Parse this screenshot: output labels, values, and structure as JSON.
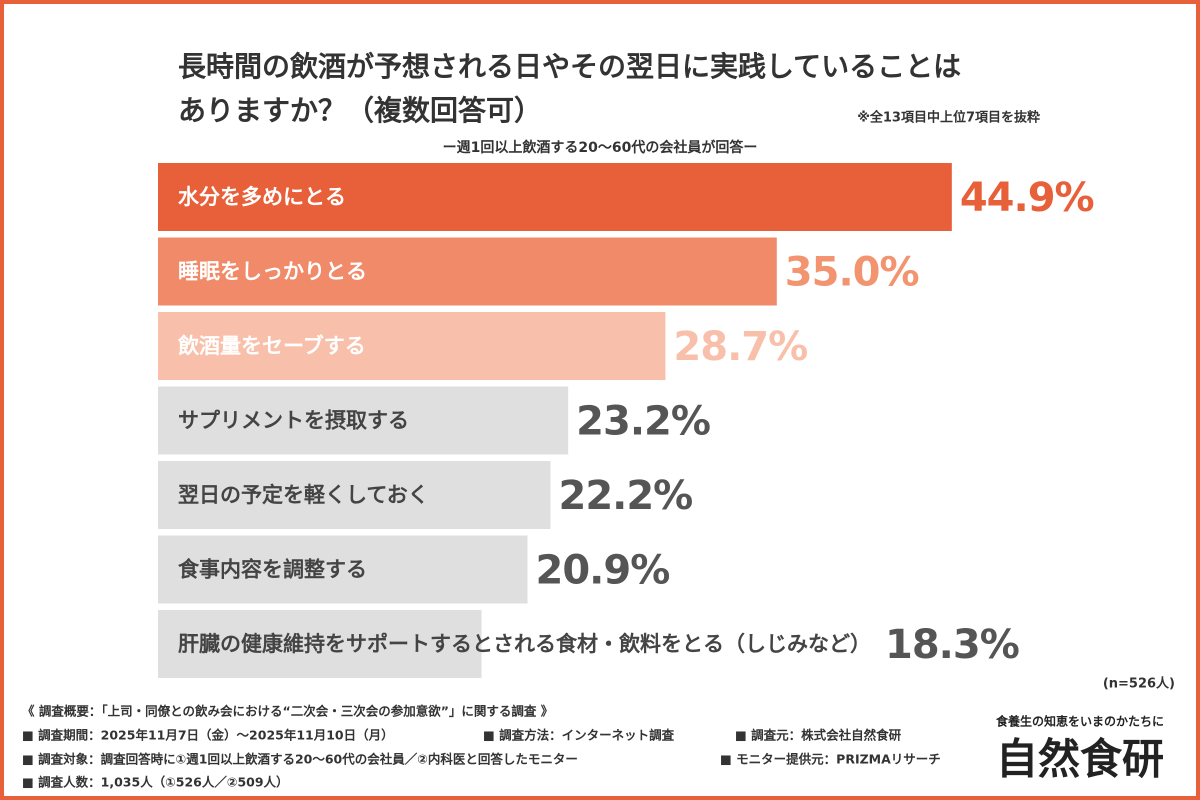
{
  "chart_data": {
    "type": "bar",
    "orientation": "horizontal",
    "title": [
      "長時間の飲酒が予想される日やその翌日に実践していることは",
      "ありますか？（複数回答可）"
    ],
    "note": "※全13項目中上位7項目を抜粋",
    "subtitle": "ー週1回以上飲酒する20〜60代の会社員が回答ー",
    "categories": [
      "水分を多めにとる",
      "睡眠をしっかりとる",
      "飲酒量をセーブする",
      "サプリメントを摂取する",
      "翌日の予定を軽くしておく",
      "食事内容を調整する",
      "肝臓の健康維持をサポートするとされる食材・飲料をとる（しじみなど）"
    ],
    "values": [
      44.9,
      35.0,
      28.7,
      23.2,
      22.2,
      20.9,
      18.3
    ],
    "value_labels": [
      "44.9%",
      "35.0%",
      "28.7%",
      "23.2%",
      "22.2%",
      "20.9%",
      "18.3%"
    ],
    "colors": [
      "#e8603a",
      "#f08a68",
      "#f8c0aa",
      "#e0dfe0",
      "#e0dfe0",
      "#e0dfe0",
      "#e0dfe0"
    ],
    "category_label_colors": [
      "#ffffff",
      "#ffffff",
      "#ffffff",
      "#444444",
      "#444444",
      "#444444",
      "#444444"
    ],
    "value_label_colors": [
      "#e8603a",
      "#f39470",
      "#f8c0aa",
      "#555555",
      "#555555",
      "#555555",
      "#555555"
    ],
    "sample_size": "(n=526人)"
  },
  "footer": {
    "heading": "《 調査概要：「上司・同僚との飲み会における“二次会・三次会の参加意欲”」に関する調査 》",
    "period": "■ 調査期間：2025年11月7日（金）〜2025年11月10日（月）",
    "method": "■ 調査方法：インターネット調査",
    "source": "■ 調査元：株式会社自然食研",
    "target": "■ 調査対象：調査回答時に①週1回以上飲酒する20〜60代の会社員／②内科医と回答したモニター",
    "provider": "■ モニター提供元：PRIZMAリサーチ",
    "count": "■ 調査人数：1,035人（①526人／②509人）"
  },
  "brand": {
    "tagline": "食養生の知恵をいまのかたちに",
    "name": "自然食研"
  }
}
